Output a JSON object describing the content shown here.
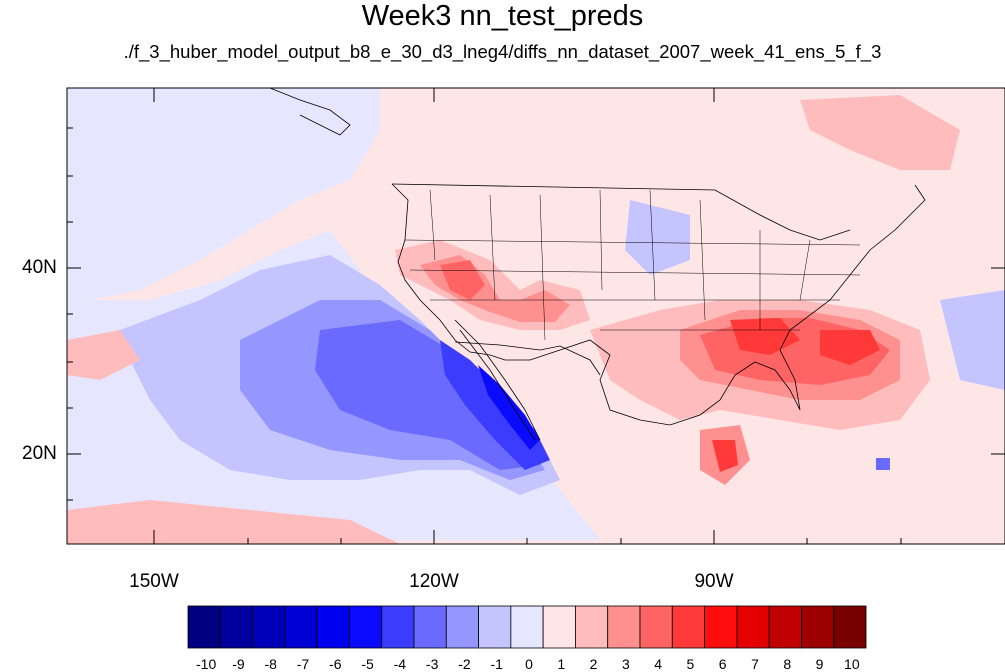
{
  "title": "Week3 nn_test_preds",
  "subtitle": "./f_3_huber_model_output_b8_e_30_d3_lneg4/diffs_nn_dataset_2007_week_41_ens_5_f_3",
  "map": {
    "lat_labels": [
      "40N",
      "20N"
    ],
    "lon_labels": [
      "150W",
      "120W",
      "90W"
    ],
    "lon_range": [
      -160,
      -62
    ],
    "lat_range": [
      11,
      59
    ],
    "features": [
      {
        "name": "west-coast-mexico-blue-plume",
        "value": -5
      },
      {
        "name": "southwest-us-warm-anomaly",
        "value": 4
      },
      {
        "name": "southeast-us-warm-anomaly",
        "value": 5
      },
      {
        "name": "florida-cold-spot",
        "value": -5
      },
      {
        "name": "caribbean-warm-spot",
        "value": 6
      }
    ]
  },
  "colorbar": {
    "labels": [
      "-10",
      "-9",
      "-8",
      "-7",
      "-6",
      "-5",
      "-4",
      "-3",
      "-2",
      "-1",
      "0",
      "1",
      "2",
      "3",
      "4",
      "5",
      "6",
      "7",
      "8",
      "9",
      "10"
    ],
    "colors": [
      "#000080",
      "#00009c",
      "#0000b8",
      "#0000d4",
      "#0000f0",
      "#0a0aff",
      "#3c3cff",
      "#6a6aff",
      "#9696ff",
      "#c4c4ff",
      "#e6e6ff",
      "#ffe6e6",
      "#ffbcbc",
      "#ff9090",
      "#ff6464",
      "#ff3838",
      "#ff0c0c",
      "#e40000",
      "#c00000",
      "#9c0000",
      "#780000"
    ]
  }
}
